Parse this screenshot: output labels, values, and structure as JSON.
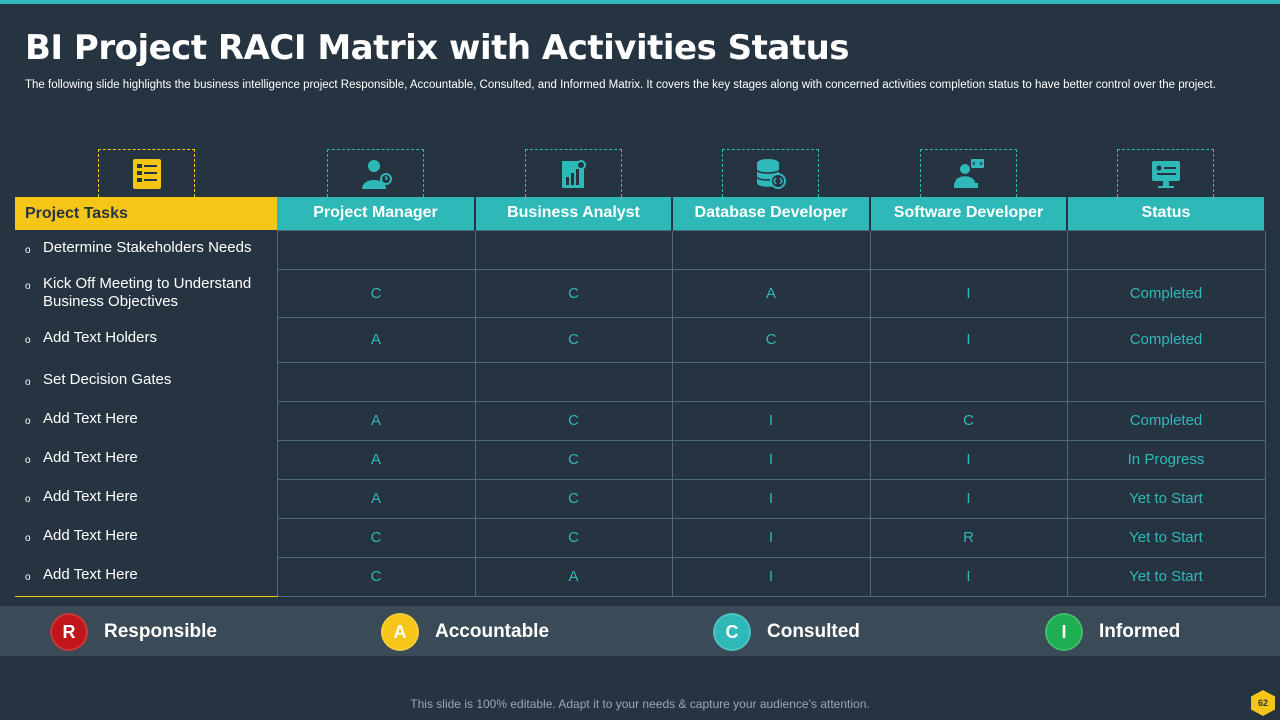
{
  "title": "BI Project RACI Matrix with Activities Status",
  "subtitle": "The following slide highlights the business intelligence project Responsible, Accountable, Consulted, and Informed Matrix. It covers the key stages along with concerned activities completion status to have better control over the project.",
  "icons": [
    "checklist-icon",
    "manager-icon",
    "analyst-icon",
    "database-icon",
    "developer-icon",
    "status-monitor-icon"
  ],
  "columns": [
    "Project Tasks",
    "Project Manager",
    "Business Analyst",
    "Database Developer",
    "Software Developer",
    "Status"
  ],
  "rows": [
    {
      "task": "Determine Stakeholders Needs",
      "pm": "",
      "ba": "",
      "dd": "",
      "sd": "",
      "status": ""
    },
    {
      "task": "Kick Off Meeting to Understand Business Objectives",
      "pm": "C",
      "ba": "C",
      "dd": "A",
      "sd": "I",
      "status": "Completed"
    },
    {
      "task": "Add Text Holders",
      "pm": "A",
      "ba": "C",
      "dd": "C",
      "sd": "I",
      "status": "Completed"
    },
    {
      "task": "Set Decision Gates",
      "pm": "",
      "ba": "",
      "dd": "",
      "sd": "",
      "status": ""
    },
    {
      "task": "Add Text Here",
      "pm": "A",
      "ba": "C",
      "dd": "I",
      "sd": "C",
      "status": "Completed"
    },
    {
      "task": "Add Text Here",
      "pm": "A",
      "ba": "C",
      "dd": "I",
      "sd": "I",
      "status": "In Progress"
    },
    {
      "task": "Add Text Here",
      "pm": "A",
      "ba": "C",
      "dd": "I",
      "sd": "I",
      "status": "Yet to Start"
    },
    {
      "task": "Add Text Here",
      "pm": "C",
      "ba": "C",
      "dd": "I",
      "sd": "R",
      "status": "Yet to Start"
    },
    {
      "task": "Add Text Here",
      "pm": "C",
      "ba": "A",
      "dd": "I",
      "sd": "I",
      "status": "Yet to Start"
    }
  ],
  "legend": [
    {
      "letter": "R",
      "label": "Responsible",
      "color": "#c0151b"
    },
    {
      "letter": "A",
      "label": "Accountable",
      "color": "#f5c518"
    },
    {
      "letter": "C",
      "label": "Consulted",
      "color": "#2fb8b8"
    },
    {
      "letter": "I",
      "label": "Informed",
      "color": "#1fae52"
    }
  ],
  "colors": {
    "accent": "#2fb8b8",
    "yellow": "#f5c518",
    "green": "#1fae52",
    "red": "#c0151b",
    "background": "#263442"
  },
  "footer": "This slide is 100% editable. Adapt it to your needs & capture your audience’s attention.",
  "page_number": "62"
}
